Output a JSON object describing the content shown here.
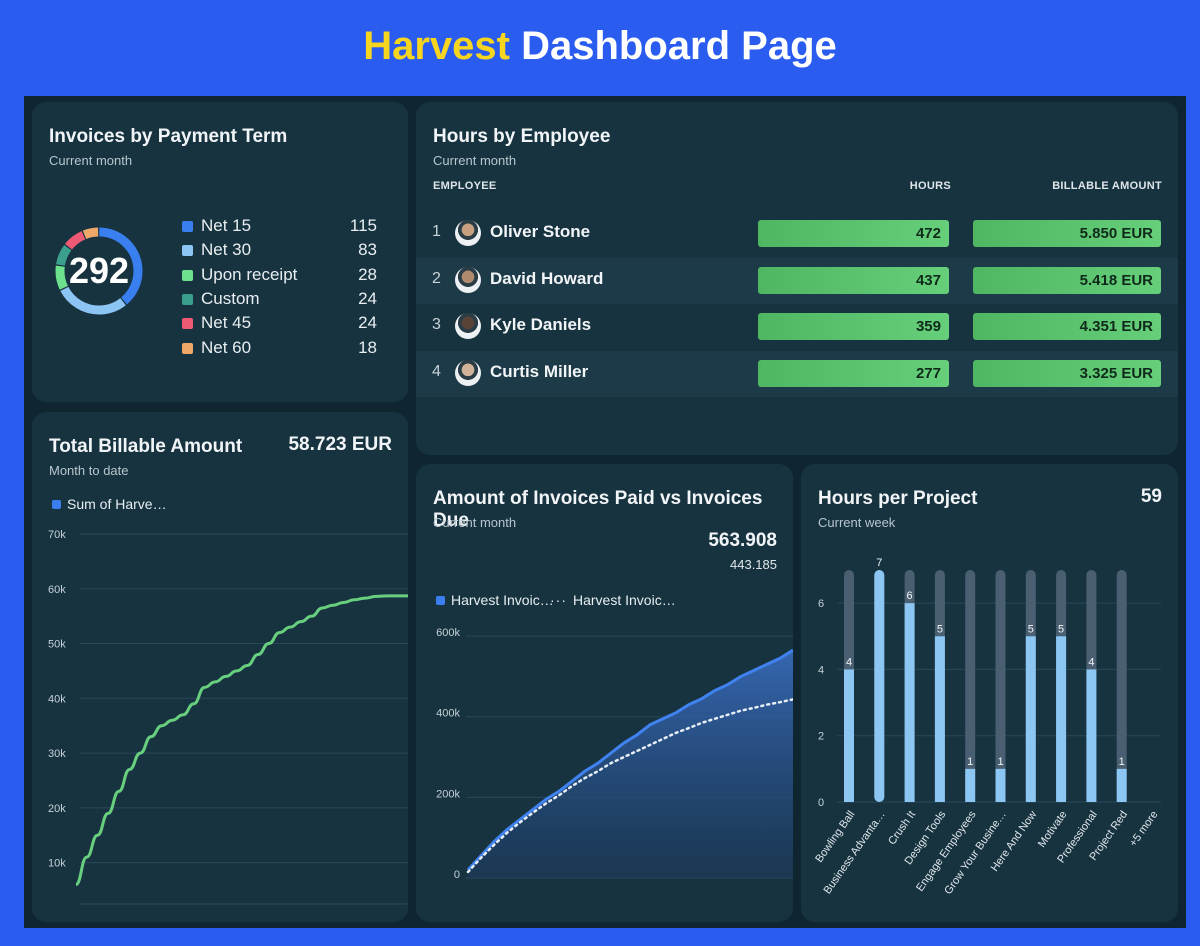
{
  "page": {
    "title_accent": "Harvest",
    "title_rest": " Dashboard Page"
  },
  "colors": {
    "frame": "#2b5cf0",
    "accent": "#f8d51e",
    "card": "#173340",
    "bg": "#0f2530",
    "green": "#5cc46f",
    "blue": "#3a7ff0"
  },
  "payment_terms": {
    "title": "Invoices by Payment Term",
    "subtitle": "Current month",
    "total": "292",
    "items": [
      {
        "label": "Net 15",
        "value": "115",
        "color": "#3a7ff0"
      },
      {
        "label": "Net 30",
        "value": "83",
        "color": "#8cc4f4"
      },
      {
        "label": "Upon receipt",
        "value": "28",
        "color": "#6ee18e"
      },
      {
        "label": "Custom",
        "value": "24",
        "color": "#3aa08d"
      },
      {
        "label": "Net 45",
        "value": "24",
        "color": "#ee5a73"
      },
      {
        "label": "Net 60",
        "value": "18",
        "color": "#f0a868"
      }
    ]
  },
  "hours_by_employee": {
    "title": "Hours by Employee",
    "subtitle": "Current month",
    "col_employee": "EMPLOYEE",
    "col_hours": "HOURS",
    "col_billable": "BILLABLE AMOUNT",
    "rows": [
      {
        "rank": "1",
        "name": "Oliver Stone",
        "hours": "472",
        "amount": "5.850 EUR"
      },
      {
        "rank": "2",
        "name": "David Howard",
        "hours": "437",
        "amount": "5.418 EUR"
      },
      {
        "rank": "3",
        "name": "Kyle Daniels",
        "hours": "359",
        "amount": "4.351 EUR"
      },
      {
        "rank": "4",
        "name": "Curtis Miller",
        "hours": "277",
        "amount": "3.325 EUR"
      }
    ]
  },
  "total_billable": {
    "title": "Total Billable Amount",
    "subtitle": "Month to date",
    "value": "58.723 EUR",
    "legend": "Sum of Harve…"
  },
  "paid_vs_due": {
    "title": "Amount of Invoices Paid vs Invoices Due",
    "subtitle": "Current month",
    "value_primary": "563.908",
    "value_secondary": "443.185",
    "legend_paid": "Harvest Invoic…",
    "legend_due": "Harvest Invoic…"
  },
  "hours_per_project": {
    "title": "Hours per Project",
    "subtitle": "Current week",
    "total": "59"
  },
  "chart_data": [
    {
      "type": "line",
      "chart": "total_billable",
      "series": [
        {
          "name": "Sum of Harve…",
          "values": [
            6,
            11,
            15,
            19,
            23,
            27,
            30,
            33,
            35,
            36,
            37,
            39,
            42,
            43,
            44,
            45,
            46,
            48,
            50,
            52,
            53,
            54,
            55,
            56.5,
            57,
            57.5,
            58,
            58.3,
            58.6,
            58.7,
            58.7,
            58.7
          ]
        }
      ],
      "yticks": [
        "10k",
        "20k",
        "30k",
        "40k",
        "50k",
        "60k",
        "70k"
      ],
      "ylim": [
        5,
        70
      ]
    },
    {
      "type": "area",
      "chart": "paid_vs_due",
      "series": [
        {
          "name": "Harvest Invoic…",
          "values": [
            20,
            55,
            90,
            120,
            145,
            170,
            195,
            215,
            240,
            265,
            285,
            310,
            335,
            355,
            380,
            395,
            410,
            430,
            445,
            465,
            480,
            500,
            515,
            530,
            545,
            565
          ]
        },
        {
          "name": "Harvest Invoic…",
          "values": [
            15,
            50,
            82,
            112,
            138,
            162,
            185,
            205,
            228,
            248,
            265,
            285,
            300,
            315,
            330,
            345,
            360,
            372,
            385,
            395,
            405,
            415,
            422,
            430,
            436,
            443
          ]
        }
      ],
      "yticks": [
        "0",
        "200k",
        "400k",
        "600k"
      ],
      "ylim": [
        0,
        620
      ]
    },
    {
      "type": "bar",
      "chart": "hours_per_project",
      "categories": [
        "Bowling Ball",
        "Business Advanta…",
        "Crush It",
        "Design Tools",
        "Engage Employees",
        "Grow Your Busine…",
        "Here And Now",
        "Motivate",
        "Professional",
        "Project Red",
        "+5 more"
      ],
      "values": [
        4,
        7,
        6,
        5,
        1,
        1,
        5,
        5,
        4,
        1
      ],
      "labels": [
        "4",
        "7",
        "6",
        "5",
        "1",
        "1",
        "5",
        "5",
        "4",
        "1"
      ],
      "yticks": [
        "0",
        "2",
        "4",
        "6"
      ],
      "ylim": [
        0,
        7
      ]
    }
  ]
}
